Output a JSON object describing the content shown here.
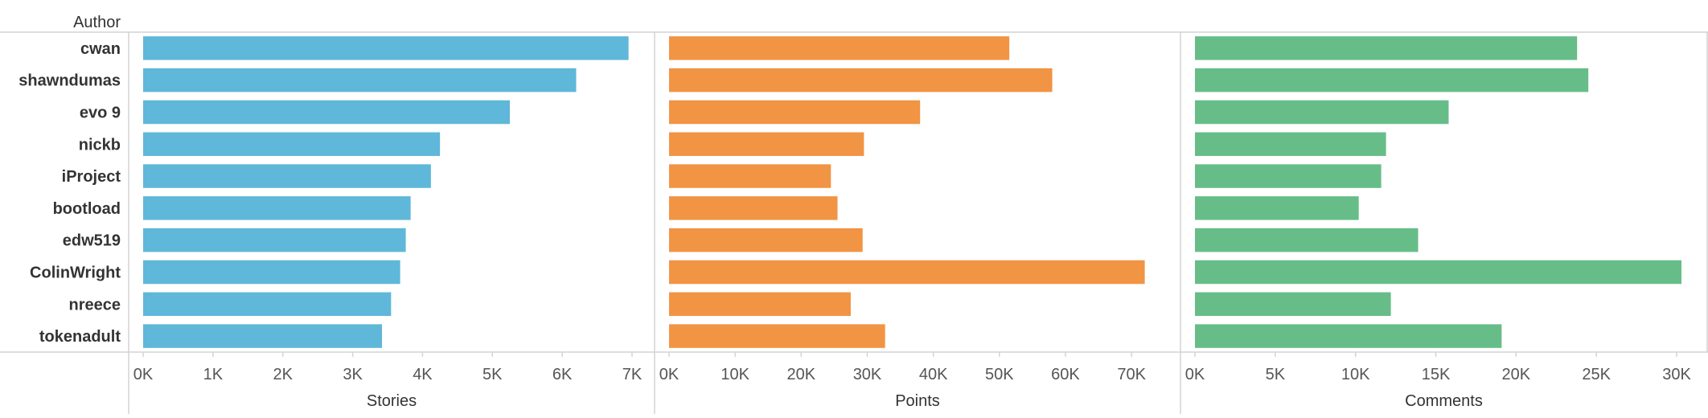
{
  "chart_data": {
    "type": "bar",
    "orientation": "horizontal",
    "row_header": "Author",
    "categories": [
      "cwan",
      "shawndumas",
      "evo 9",
      "nickb",
      "iProject",
      "bootload",
      "edw519",
      "ColinWright",
      "nreece",
      "tokenadult"
    ],
    "panels": [
      {
        "name": "Stories",
        "xlabel": "Stories",
        "color": "#5fb7d9",
        "xlim": [
          0,
          7000
        ],
        "ticks": [
          0,
          1000,
          2000,
          3000,
          4000,
          5000,
          6000,
          7000
        ],
        "tick_labels": [
          "0K",
          "1K",
          "2K",
          "3K",
          "4K",
          "5K",
          "6K",
          "7K"
        ],
        "values": [
          6950,
          6200,
          5250,
          4250,
          4120,
          3830,
          3760,
          3680,
          3550,
          3420
        ]
      },
      {
        "name": "Points",
        "xlabel": "Points",
        "color": "#f19443",
        "xlim": [
          0,
          74000
        ],
        "ticks": [
          0,
          10000,
          20000,
          30000,
          40000,
          50000,
          60000,
          70000
        ],
        "tick_labels": [
          "0K",
          "10K",
          "20K",
          "30K",
          "40K",
          "50K",
          "60K",
          "70K"
        ],
        "values": [
          51500,
          58000,
          38000,
          29500,
          24500,
          25500,
          29300,
          72000,
          27500,
          32700
        ]
      },
      {
        "name": "Comments",
        "xlabel": "Comments",
        "color": "#67bd88",
        "xlim": [
          0,
          30500
        ],
        "ticks": [
          0,
          5000,
          10000,
          15000,
          20000,
          25000,
          30000
        ],
        "tick_labels": [
          "0K",
          "5K",
          "10K",
          "15K",
          "20K",
          "25K",
          "30K"
        ],
        "values": [
          23800,
          24500,
          15800,
          11900,
          11600,
          10200,
          13900,
          30300,
          12200,
          19100
        ]
      }
    ],
    "grid": false,
    "legend": "none"
  }
}
